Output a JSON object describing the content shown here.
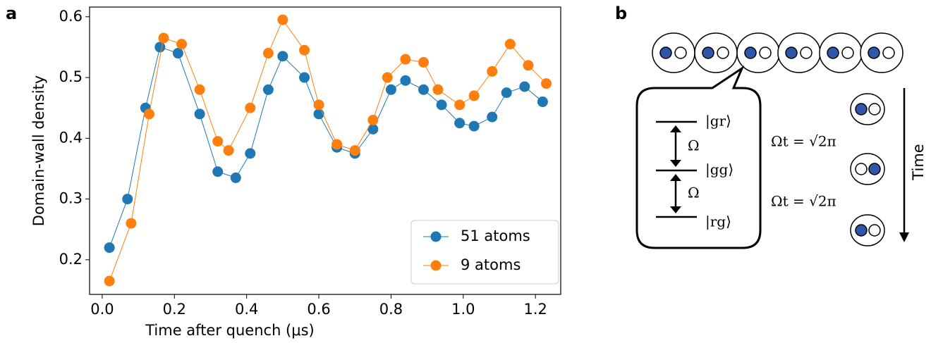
{
  "panel_labels": [
    "a",
    "b"
  ],
  "chart_data": {
    "type": "line",
    "xlabel": "Time after quench (μs)",
    "ylabel": "Domain-wall density",
    "xlim": [
      -0.035,
      1.27
    ],
    "ylim": [
      0.143,
      0.616
    ],
    "xticks": [
      {
        "value": 0,
        "label": "0.0"
      },
      0.2,
      0.4,
      0.6,
      0.8,
      {
        "value": 1,
        "label": "1.0"
      },
      1.2
    ],
    "yticks": [
      0.2,
      0.3,
      0.4,
      0.5,
      0.6
    ],
    "legend": "lower right",
    "series": [
      {
        "name": "51 atoms",
        "color": "#1f77b4",
        "x": [
          0.02,
          0.07,
          0.12,
          0.16,
          0.21,
          0.27,
          0.32,
          0.37,
          0.41,
          0.46,
          0.5,
          0.56,
          0.6,
          0.65,
          0.7,
          0.75,
          0.8,
          0.84,
          0.89,
          0.94,
          0.99,
          1.03,
          1.08,
          1.12,
          1.17,
          1.22
        ],
        "values": [
          0.22,
          0.3,
          0.45,
          0.55,
          0.54,
          0.44,
          0.345,
          0.335,
          0.375,
          0.48,
          0.535,
          0.5,
          0.44,
          0.385,
          0.375,
          0.415,
          0.48,
          0.495,
          0.48,
          0.455,
          0.425,
          0.42,
          0.435,
          0.475,
          0.485,
          0.46
        ]
      },
      {
        "name": "9 atoms",
        "color": "#ff7f0e",
        "x": [
          0.02,
          0.08,
          0.13,
          0.17,
          0.22,
          0.27,
          0.32,
          0.35,
          0.41,
          0.46,
          0.5,
          0.56,
          0.6,
          0.65,
          0.7,
          0.75,
          0.79,
          0.84,
          0.89,
          0.93,
          0.99,
          1.03,
          1.08,
          1.13,
          1.18,
          1.23
        ],
        "values": [
          0.165,
          0.26,
          0.44,
          0.565,
          0.555,
          0.48,
          0.395,
          0.38,
          0.45,
          0.54,
          0.595,
          0.545,
          0.455,
          0.39,
          0.38,
          0.43,
          0.5,
          0.53,
          0.525,
          0.48,
          0.455,
          0.47,
          0.51,
          0.555,
          0.52,
          0.49
        ]
      }
    ]
  },
  "diagram": {
    "levels": [
      "|gr⟩",
      "|gg⟩",
      "|rg⟩"
    ],
    "coupling": [
      "Ω",
      "Ω"
    ],
    "pulses": [
      "Ωt = √2π",
      "Ωt = √2π"
    ],
    "time_label": "Time"
  }
}
